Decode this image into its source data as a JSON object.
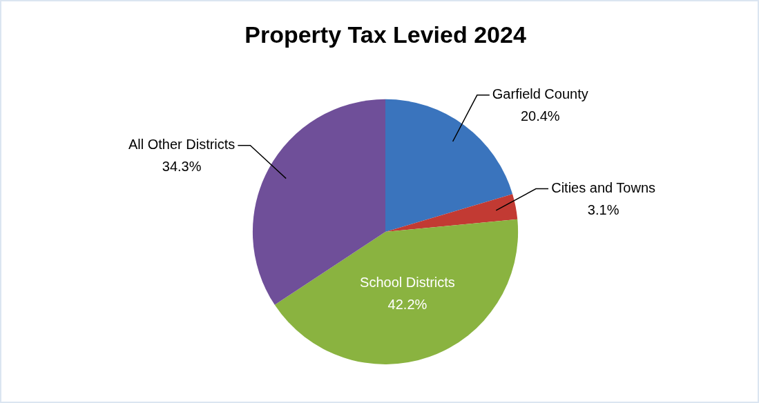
{
  "chart_data": {
    "type": "pie",
    "title": "Property Tax Levied 2024",
    "categories": [
      "Garfield County",
      "Cities and Towns",
      "School Districts",
      "All Other Districts"
    ],
    "values": [
      20.4,
      3.1,
      42.2,
      34.3
    ],
    "value_labels": [
      "20.4%",
      "3.1%",
      "42.2%",
      "34.3%"
    ],
    "colors": [
      "#3a74bd",
      "#c23a33",
      "#8ab340",
      "#6f4f99"
    ],
    "legend": false
  }
}
